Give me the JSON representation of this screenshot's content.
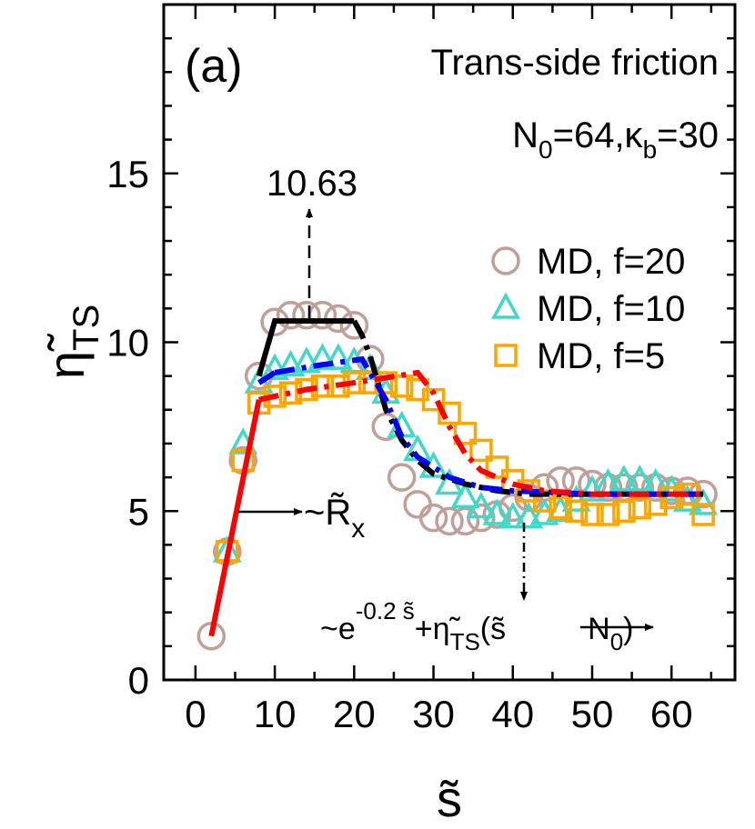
{
  "chart_data": {
    "type": "scatter",
    "x": [
      2,
      4,
      6,
      8,
      10,
      12,
      14,
      16,
      18,
      20,
      22,
      24,
      26,
      28,
      30,
      32,
      34,
      36,
      38,
      40,
      42,
      44,
      46,
      48,
      50,
      52,
      54,
      56,
      58,
      60,
      62,
      64
    ],
    "series": [
      {
        "name": "MD, f=20",
        "marker": "circle",
        "color": "#bf9f98",
        "values": [
          1.3,
          3.8,
          6.5,
          9.0,
          10.6,
          10.8,
          10.8,
          10.8,
          10.7,
          10.5,
          9.5,
          7.5,
          6.0,
          5.2,
          4.8,
          4.7,
          4.7,
          4.8,
          4.9,
          5.1,
          5.4,
          5.7,
          5.9,
          5.9,
          5.8,
          5.7,
          5.7,
          5.7,
          5.7,
          5.6,
          5.6,
          5.5
        ]
      },
      {
        "name": "MD, f=10",
        "marker": "triangle",
        "color": "#3fd9c8",
        "values": [
          null,
          3.8,
          7.0,
          8.8,
          9.2,
          9.3,
          9.4,
          9.5,
          9.5,
          9.4,
          9.2,
          8.5,
          7.5,
          6.8,
          6.3,
          5.8,
          5.4,
          5.1,
          4.9,
          4.8,
          4.8,
          4.9,
          5.0,
          5.3,
          5.6,
          5.8,
          5.9,
          5.9,
          5.8,
          5.6,
          5.3,
          5.2
        ]
      },
      {
        "name": "MD, f=5",
        "marker": "square",
        "color": "#ffa500",
        "values": [
          null,
          3.8,
          6.5,
          8.2,
          8.4,
          8.5,
          8.6,
          8.7,
          8.7,
          8.8,
          8.8,
          8.8,
          8.7,
          8.6,
          8.3,
          7.9,
          7.3,
          6.8,
          6.3,
          5.9,
          5.6,
          5.3,
          5.1,
          5.0,
          4.9,
          4.9,
          5.0,
          5.1,
          5.2,
          5.4,
          5.5,
          4.9
        ]
      }
    ],
    "fits": [
      {
        "color": "#000000",
        "style": "solid",
        "x": [
          8,
          10,
          14,
          18,
          20
        ],
        "values": [
          9.0,
          10.63,
          10.63,
          10.63,
          10.63
        ]
      },
      {
        "color": "#000000",
        "style": "dashdot",
        "x": [
          20,
          21,
          22,
          24,
          26,
          28,
          30,
          34,
          38,
          42,
          50,
          64
        ],
        "values": [
          10.63,
          10.2,
          9.6,
          8.0,
          7.1,
          6.5,
          6.1,
          5.8,
          5.6,
          5.5,
          5.5,
          5.5
        ]
      },
      {
        "color": "#0000ff",
        "style": "solid",
        "x": [
          8,
          10
        ],
        "values": [
          8.8,
          9.1
        ]
      },
      {
        "color": "#0000ff",
        "style": "dashdot",
        "x": [
          10,
          15,
          21,
          24,
          26,
          28,
          32,
          36,
          40,
          50,
          64
        ],
        "values": [
          9.1,
          9.3,
          9.5,
          8.3,
          7.2,
          6.6,
          6.0,
          5.7,
          5.6,
          5.5,
          5.5
        ]
      },
      {
        "color": "#ff0000",
        "style": "solid",
        "x": [
          2,
          8
        ],
        "values": [
          1.3,
          8.3
        ]
      },
      {
        "color": "#ff0000",
        "style": "dashdot",
        "x": [
          8,
          14,
          20,
          28,
          30,
          32,
          34,
          36,
          40,
          44,
          50,
          64
        ],
        "values": [
          8.3,
          8.6,
          8.8,
          9.1,
          8.5,
          7.5,
          6.7,
          6.2,
          5.8,
          5.6,
          5.5,
          5.5
        ]
      }
    ],
    "xlim": [
      -4,
      68
    ],
    "ylim": [
      0,
      20
    ],
    "xticks": [
      0,
      10,
      20,
      30,
      40,
      50,
      60
    ],
    "yticks": [
      0,
      5,
      10,
      15
    ],
    "xminorticks": [
      5,
      15,
      25,
      35,
      45,
      55,
      65
    ],
    "yminorticks": [
      1,
      2,
      3,
      4,
      6,
      7,
      8,
      9,
      11,
      12,
      13,
      14,
      16,
      17,
      18,
      19
    ],
    "xlabel": "s̃",
    "ylabel": {
      "main": "η̃",
      "sub": "TS"
    },
    "panel_label": "(a)",
    "title": "Trans-side friction",
    "subtitle": {
      "parts": [
        "N",
        "0",
        "=64,κ",
        "b",
        "=30"
      ]
    },
    "annotations": {
      "peak": "10.63",
      "rise": {
        "main": "~R̃",
        "sub": "x"
      },
      "decay": {
        "a": "~e",
        "sup": "-0.2 s̃",
        "b": "+η̃",
        "sub": "TS",
        "c": "(s̃",
        "d": "N",
        "sub2": "0",
        "e": ")"
      }
    },
    "legend": "upper right"
  }
}
